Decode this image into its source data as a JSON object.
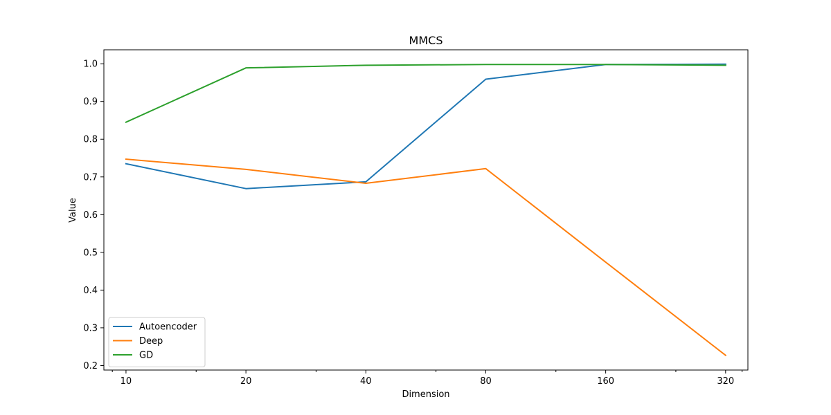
{
  "chart_data": {
    "type": "line",
    "title": "MMCS",
    "xlabel": "Dimension",
    "ylabel": "Value",
    "x_scale": "log2",
    "x": [
      10,
      20,
      40,
      80,
      160,
      320
    ],
    "x_tick_labels": [
      "10",
      "20",
      "40",
      "80",
      "160",
      "320"
    ],
    "xlim": [
      8.8,
      364
    ],
    "ylim": [
      0.188,
      1.037
    ],
    "y_ticks": [
      0.2,
      0.3,
      0.4,
      0.5,
      0.6,
      0.7,
      0.8,
      0.9,
      1.0
    ],
    "y_tick_labels": [
      "0.2",
      "0.3",
      "0.4",
      "0.5",
      "0.6",
      "0.7",
      "0.8",
      "0.9",
      "1.0"
    ],
    "grid": false,
    "legend_position": "lower-left",
    "series": [
      {
        "name": "Autoencoder",
        "color": "#1f77b4",
        "values": [
          0.735,
          0.669,
          0.687,
          0.959,
          0.998,
          0.999
        ]
      },
      {
        "name": "Deep",
        "color": "#ff7f0e",
        "values": [
          0.747,
          0.72,
          0.683,
          0.722,
          0.474,
          0.227
        ]
      },
      {
        "name": "GD",
        "color": "#2ca02c",
        "values": [
          0.845,
          0.989,
          0.996,
          0.998,
          0.998,
          0.996
        ]
      }
    ]
  }
}
